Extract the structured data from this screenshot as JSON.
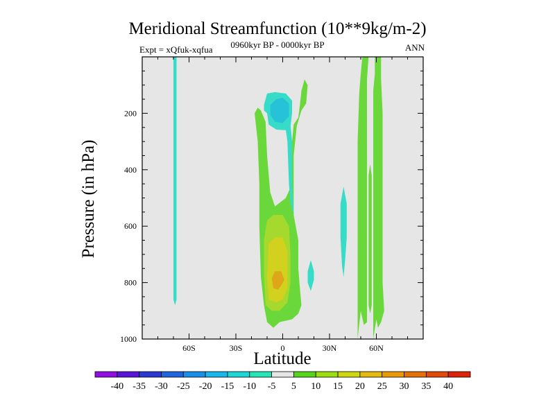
{
  "chart_data": {
    "type": "heatmap",
    "title": "Meridional Streamfunction (10**9kg/m-2)",
    "subtitle_left": "Expt = xQfuk-xqfua",
    "subtitle_center": "0960kyr BP - 0000kyr BP",
    "subtitle_right": "ANN",
    "xlabel": "Latitude",
    "ylabel": "Pressure (in hPa)",
    "xlim": [
      -90,
      90
    ],
    "ylim": [
      1000,
      0
    ],
    "x_ticks": [
      {
        "value": -60,
        "label": "60S"
      },
      {
        "value": -30,
        "label": "30S"
      },
      {
        "value": 0,
        "label": "0"
      },
      {
        "value": 30,
        "label": "30N"
      },
      {
        "value": 60,
        "label": "60N"
      }
    ],
    "y_ticks": [
      {
        "value": 200,
        "label": "200"
      },
      {
        "value": 400,
        "label": "400"
      },
      {
        "value": 600,
        "label": "600"
      },
      {
        "value": 800,
        "label": "800"
      },
      {
        "value": 1000,
        "label": "1000"
      }
    ],
    "levels": [
      -40,
      -35,
      -30,
      -25,
      -20,
      -15,
      -10,
      -5,
      5,
      10,
      15,
      20,
      25,
      30,
      35,
      40
    ],
    "colorbar_colors": [
      "#8f0fe0",
      "#5a14d8",
      "#2a3ad0",
      "#1f66dd",
      "#1a8fe8",
      "#19b8ea",
      "#1dd6d6",
      "#25e6b8",
      "#e6e6e6",
      "#59d41c",
      "#9bde12",
      "#cfd80f",
      "#e3ba0d",
      "#e89a0a",
      "#e47209",
      "#e04a0a",
      "#dc2208"
    ],
    "background_color": "#e6e6e6",
    "contours": [
      {
        "value": 5,
        "label": "5 to 10",
        "color": "#6ad83a",
        "points": [
          [
            -12,
            880
          ],
          [
            -14,
            780
          ],
          [
            -15,
            600
          ],
          [
            -15,
            450
          ],
          [
            -16,
            300
          ],
          [
            -18,
            200
          ],
          [
            -16,
            180
          ],
          [
            -14,
            190
          ],
          [
            -11,
            230
          ],
          [
            -10,
            350
          ],
          [
            -8,
            480
          ],
          [
            -5,
            530
          ],
          [
            2,
            500
          ],
          [
            6,
            450
          ],
          [
            6,
            300
          ],
          [
            7,
            240
          ],
          [
            10,
            215
          ],
          [
            11,
            170
          ],
          [
            12,
            120
          ],
          [
            14,
            80
          ],
          [
            16,
            100
          ],
          [
            15,
            165
          ],
          [
            12,
            190
          ],
          [
            9,
            245
          ],
          [
            7,
            350
          ],
          [
            7,
            460
          ],
          [
            7,
            560
          ],
          [
            10,
            650
          ],
          [
            10,
            750
          ],
          [
            11,
            820
          ],
          [
            12,
            880
          ],
          [
            10,
            910
          ],
          [
            6,
            930
          ],
          [
            -2,
            940
          ],
          [
            -6,
            960
          ],
          [
            -10,
            940
          ]
        ]
      },
      {
        "value": 5,
        "label": "5 to 10",
        "color": "#6ad83a",
        "points": [
          [
            48,
            1000
          ],
          [
            48,
            300
          ],
          [
            49,
            130
          ],
          [
            50,
            60
          ],
          [
            51,
            0
          ],
          [
            55,
            0
          ],
          [
            54,
            80
          ],
          [
            54,
            300
          ],
          [
            54,
            700
          ],
          [
            54,
            940
          ],
          [
            52,
            950
          ],
          [
            50,
            900
          ]
        ]
      },
      {
        "value": 5,
        "label": "5 to 10",
        "color": "#6ad83a",
        "points": [
          [
            58,
            1000
          ],
          [
            58,
            300
          ],
          [
            58,
            120
          ],
          [
            59,
            60
          ],
          [
            59,
            0
          ],
          [
            63,
            0
          ],
          [
            63,
            80
          ],
          [
            64,
            200
          ],
          [
            64,
            500
          ],
          [
            64,
            800
          ],
          [
            65,
            900
          ],
          [
            63,
            940
          ],
          [
            61,
            960
          ],
          [
            60,
            930
          ]
        ]
      },
      {
        "value": 5,
        "label": "5 to 10",
        "color": "#6ad83a",
        "points": [
          [
            55,
            880
          ],
          [
            55,
            600
          ],
          [
            55,
            420
          ],
          [
            56,
            380
          ],
          [
            57,
            420
          ],
          [
            57,
            700
          ],
          [
            57,
            880
          ],
          [
            56,
            910
          ]
        ]
      },
      {
        "value": 10,
        "label": "10 to 15",
        "color": "#a6d92d",
        "points": [
          [
            -11,
            880
          ],
          [
            -12,
            780
          ],
          [
            -12,
            650
          ],
          [
            -10,
            580
          ],
          [
            -6,
            560
          ],
          [
            0,
            560
          ],
          [
            4,
            600
          ],
          [
            5,
            700
          ],
          [
            5,
            800
          ],
          [
            3,
            870
          ],
          [
            -2,
            900
          ],
          [
            -7,
            900
          ]
        ]
      },
      {
        "value": 15,
        "label": "15 to 20",
        "color": "#d2d11e",
        "points": [
          [
            -9,
            860
          ],
          [
            -10,
            780
          ],
          [
            -9,
            660
          ],
          [
            -5,
            640
          ],
          [
            0,
            640
          ],
          [
            3,
            690
          ],
          [
            3,
            820
          ],
          [
            0,
            860
          ],
          [
            -4,
            870
          ]
        ]
      },
      {
        "value": 25,
        "label": "25 to 30",
        "color": "#e0a61a",
        "points": [
          [
            -6,
            820
          ],
          [
            -7,
            785
          ],
          [
            -5,
            760
          ],
          [
            -1,
            760
          ],
          [
            1,
            790
          ],
          [
            -1,
            810
          ],
          [
            -3,
            825
          ]
        ]
      },
      {
        "value": -5,
        "label": "-10 to -5",
        "color": "#36dcc8",
        "points": [
          [
            -70,
            0
          ],
          [
            -70,
            200
          ],
          [
            -70,
            500
          ],
          [
            -70,
            760
          ],
          [
            -70,
            860
          ],
          [
            -69,
            880
          ],
          [
            -68,
            860
          ],
          [
            -68,
            500
          ],
          [
            -68,
            200
          ],
          [
            -68,
            0
          ]
        ]
      },
      {
        "value": -5,
        "label": "-10 to -5",
        "color": "#36dcc8",
        "points": [
          [
            -12,
            170
          ],
          [
            -10,
            130
          ],
          [
            -5,
            125
          ],
          [
            2,
            130
          ],
          [
            6,
            155
          ],
          [
            6,
            200
          ],
          [
            5,
            245
          ],
          [
            6,
            300
          ],
          [
            6,
            450
          ],
          [
            7,
            560
          ],
          [
            5,
            520
          ],
          [
            4,
            450
          ],
          [
            3,
            300
          ],
          [
            2,
            260
          ],
          [
            -4,
            258
          ],
          [
            -9,
            240
          ],
          [
            -10,
            200
          ],
          [
            -12,
            190
          ]
        ]
      },
      {
        "value": -5,
        "label": "-10 to -5",
        "color": "#36dcc8",
        "points": [
          [
            16,
            760
          ],
          [
            18,
            720
          ],
          [
            20,
            760
          ],
          [
            20,
            790
          ],
          [
            18,
            830
          ],
          [
            16,
            800
          ]
        ]
      },
      {
        "value": -5,
        "label": "-10 to -5",
        "color": "#36dcc8",
        "points": [
          [
            37,
            640
          ],
          [
            37,
            520
          ],
          [
            39,
            460
          ],
          [
            41,
            520
          ],
          [
            41,
            640
          ],
          [
            40,
            720
          ],
          [
            39,
            780
          ],
          [
            38,
            740
          ]
        ]
      },
      {
        "value": -10,
        "label": "-15 to -10",
        "color": "#25c2d8",
        "points": [
          [
            -8,
            170
          ],
          [
            -4,
            150
          ],
          [
            0,
            145
          ],
          [
            4,
            165
          ],
          [
            4,
            210
          ],
          [
            0,
            235
          ],
          [
            -5,
            230
          ],
          [
            -8,
            205
          ]
        ]
      }
    ],
    "notes": "Positive (green-yellow-orange) values centered ~780 hPa near 0°, bands at 45–65N; negative (cyan) patches near 65S upper levels and ~0–10N at 150–250 hPa."
  }
}
